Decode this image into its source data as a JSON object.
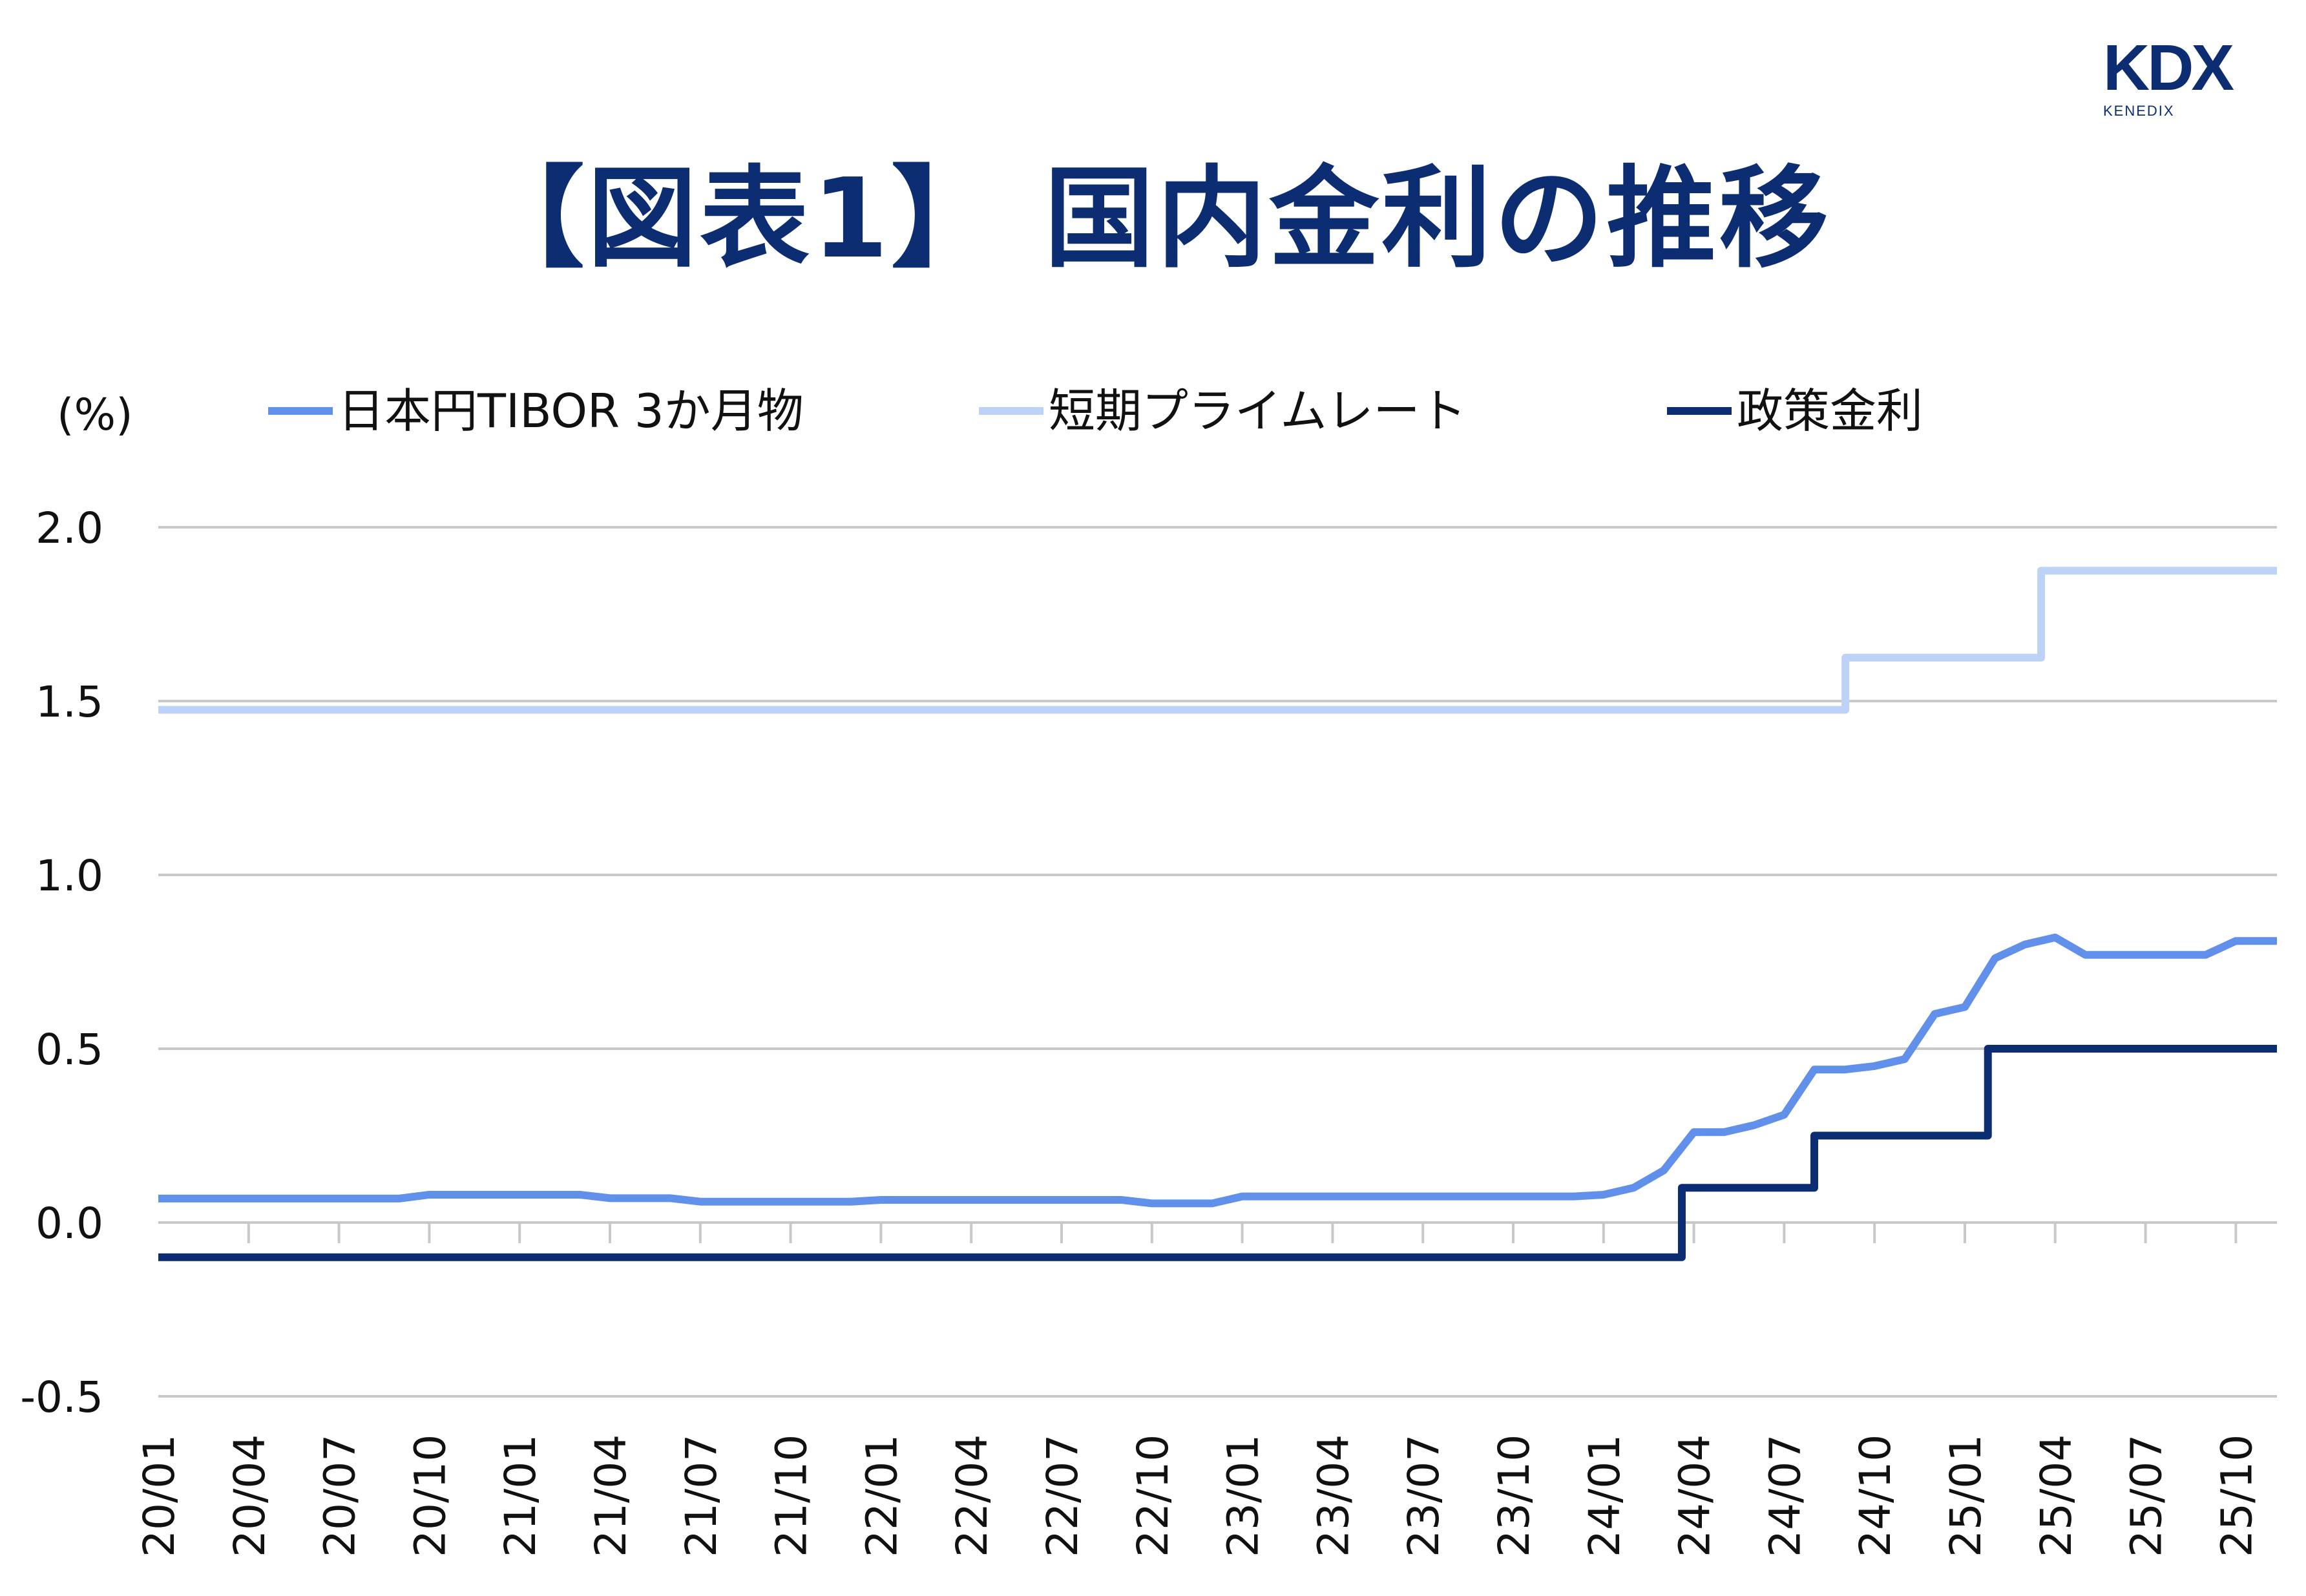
{
  "title": "【図表1】 国内金利の推移",
  "logo": {
    "main": "KDX",
    "sub": "KENEDIX"
  },
  "colors": {
    "tibor": "#6090ea",
    "prime": "#bcd2f6",
    "policy": "#0d2d72",
    "grid": "#c8c8c8",
    "title": "#0d2d72"
  },
  "chart_data": {
    "type": "line",
    "title": "",
    "ylabel": "(%)",
    "ylim": [
      -0.5,
      2.0
    ],
    "yticks": [
      "-0.5",
      "0.0",
      "0.5",
      "1.0",
      "1.5",
      "2.0"
    ],
    "xticks": [
      "20/01",
      "20/04",
      "20/07",
      "20/10",
      "21/01",
      "21/04",
      "21/07",
      "21/10",
      "22/01",
      "22/04",
      "22/07",
      "22/10",
      "23/01",
      "23/04",
      "23/07",
      "23/10",
      "24/01",
      "24/04",
      "24/07",
      "24/10",
      "25/01",
      "25/04",
      "25/07",
      "25/10"
    ],
    "xrange": [
      "2020-01",
      "2025-11"
    ],
    "grid": true,
    "legend_position": "top",
    "series": [
      {
        "name": "日本円TIBOR 3か月物",
        "key": "tibor",
        "step": false,
        "points": [
          [
            "2020-01",
            0.069
          ],
          [
            "2020-09",
            0.069
          ],
          [
            "2020-10",
            0.08
          ],
          [
            "2021-03",
            0.08
          ],
          [
            "2021-04",
            0.07
          ],
          [
            "2021-06",
            0.07
          ],
          [
            "2021-07",
            0.06
          ],
          [
            "2021-12",
            0.06
          ],
          [
            "2022-01",
            0.065
          ],
          [
            "2022-09",
            0.065
          ],
          [
            "2022-10",
            0.055
          ],
          [
            "2022-12",
            0.055
          ],
          [
            "2023-01",
            0.075
          ],
          [
            "2023-12",
            0.075
          ],
          [
            "2024-01",
            0.08
          ],
          [
            "2024-02",
            0.1
          ],
          [
            "2024-03",
            0.15
          ],
          [
            "2024-04",
            0.26
          ],
          [
            "2024-05",
            0.26
          ],
          [
            "2024-06",
            0.28
          ],
          [
            "2024-07",
            0.31
          ],
          [
            "2024-08",
            0.44
          ],
          [
            "2024-09",
            0.44
          ],
          [
            "2024-10",
            0.45
          ],
          [
            "2024-11",
            0.47
          ],
          [
            "2024-12",
            0.6
          ],
          [
            "2025-01",
            0.62
          ],
          [
            "2025-02",
            0.76
          ],
          [
            "2025-03",
            0.8
          ],
          [
            "2025-04",
            0.82
          ],
          [
            "2025-05",
            0.77
          ],
          [
            "2025-09",
            0.77
          ],
          [
            "2025-10",
            0.81
          ],
          [
            "2025-11",
            0.81
          ]
        ]
      },
      {
        "name": "短期プライムレート",
        "key": "prime",
        "step": true,
        "points": [
          [
            "2020-01-01",
            1.475
          ],
          [
            "2024-09-02",
            1.625
          ],
          [
            "2025-03-17",
            1.875
          ],
          [
            "2025-11-15",
            1.875
          ]
        ]
      },
      {
        "name": "政策金利",
        "key": "policy",
        "step": true,
        "points": [
          [
            "2020-01-01",
            -0.1
          ],
          [
            "2024-03-19",
            0.1
          ],
          [
            "2024-07-31",
            0.25
          ],
          [
            "2025-01-24",
            0.5
          ],
          [
            "2025-11-15",
            0.5
          ]
        ]
      }
    ]
  }
}
